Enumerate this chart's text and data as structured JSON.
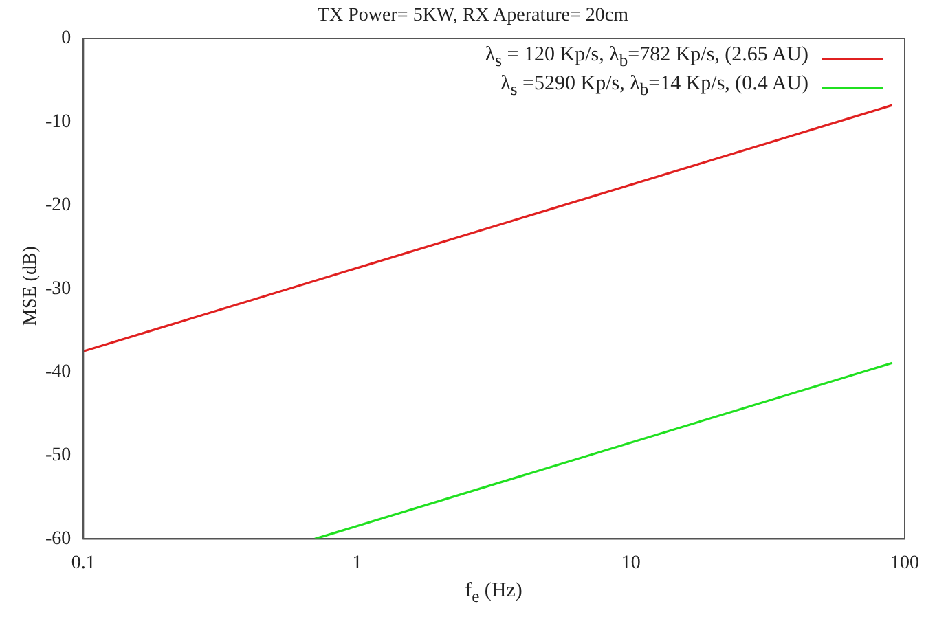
{
  "chart_data": {
    "type": "line",
    "title": "TX Power= 5KW, RX Aperature= 20cm",
    "xlabel": "f$_{e}$ (Hz)",
    "ylabel": "MSE (dB)",
    "log": "x",
    "xlim": [
      0.1,
      100
    ],
    "xticks": [
      0.1,
      1,
      10,
      100
    ],
    "ylim": [
      -60,
      0
    ],
    "yticks": [
      -60,
      -50,
      -40,
      -30,
      -20,
      -10,
      0
    ],
    "grid": false,
    "legend": "top right",
    "marker": "none",
    "line_style": "solid",
    "series": [
      {
        "name": "λ$_{s}$ = 120 Kp/s, λ$_{b}$=782 Kp/s, (2.65 AU)",
        "color": "#e02020",
        "x": [
          0.1,
          90
        ],
        "values": [
          -37.5,
          -8
        ]
      },
      {
        "name": "λ$_{s}$ =5290 Kp/s, λ$_{b}$=14 Kp/s, (0.4 AU)",
        "color": "#20e020",
        "x": [
          0.7,
          90
        ],
        "values": [
          -60,
          -38.9
        ]
      }
    ]
  }
}
